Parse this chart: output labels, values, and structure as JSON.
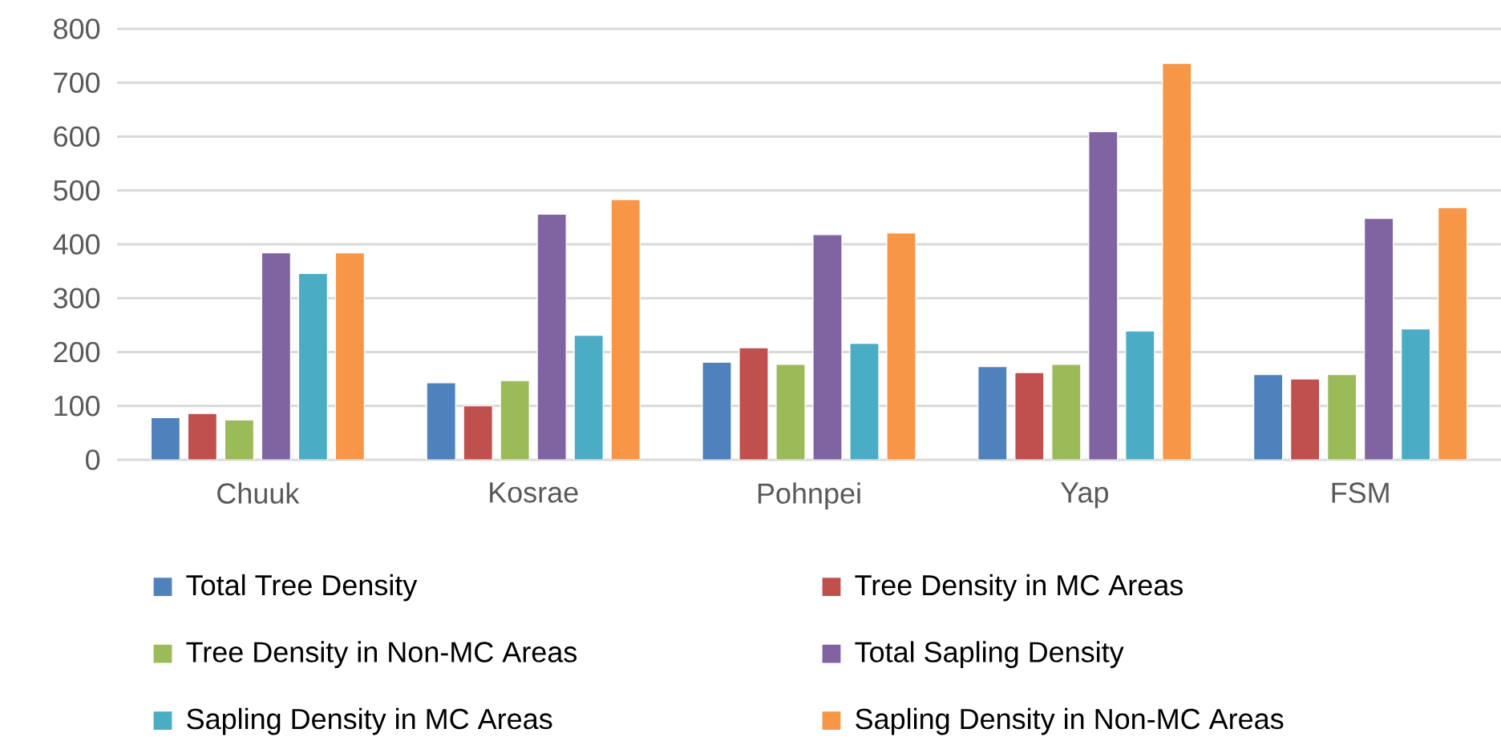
{
  "chart_data": {
    "type": "bar",
    "categories": [
      "Chuuk",
      "Kosrae",
      "Pohnpei",
      "Yap",
      "FSM"
    ],
    "series": [
      {
        "name": "Total Tree Density",
        "color": "#4f81bd",
        "values": [
          78,
          143,
          181,
          173,
          158
        ]
      },
      {
        "name": "Tree Density in MC Areas",
        "color": "#c0504d",
        "values": [
          86,
          100,
          208,
          162,
          150
        ]
      },
      {
        "name": "Tree Density in Non-MC Areas",
        "color": "#9bbb59",
        "values": [
          74,
          147,
          177,
          177,
          158
        ]
      },
      {
        "name": "Total Sapling Density",
        "color": "#8064a2",
        "values": [
          384,
          456,
          418,
          609,
          448
        ]
      },
      {
        "name": "Sapling Density in MC Areas",
        "color": "#4bacc6",
        "values": [
          346,
          231,
          216,
          239,
          243
        ]
      },
      {
        "name": "Sapling Density in Non-MC Areas",
        "color": "#f79646",
        "values": [
          384,
          483,
          421,
          736,
          468
        ]
      }
    ],
    "ylim": [
      0,
      800
    ],
    "yticks": [
      0,
      100,
      200,
      300,
      400,
      500,
      600,
      700,
      800
    ],
    "grid": "y",
    "legend": "bottom"
  }
}
